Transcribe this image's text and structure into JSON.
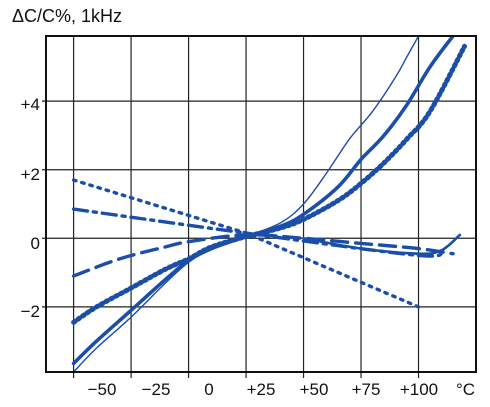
{
  "chart_data": {
    "type": "line",
    "title": "",
    "ylabel": "ΔC/C%, 1kHz",
    "xlabel": "",
    "x_unit": "°C",
    "xlim": [
      -62,
      125
    ],
    "ylim": [
      -3.9,
      5.9
    ],
    "grid": true,
    "x_ticks": [
      -50,
      -25,
      0,
      25,
      50,
      75,
      100
    ],
    "x_tick_labels": [
      "−50",
      "−25",
      "0",
      "+25",
      "+50",
      "+75",
      "+100"
    ],
    "y_ticks": [
      -2,
      0,
      2,
      4
    ],
    "y_tick_labels": [
      "−2",
      "0",
      "+2",
      "+4"
    ],
    "line_color": "#1a4ea8",
    "series": [
      {
        "style": "solid-thick",
        "x": [
          -50,
          -40,
          -25,
          -10,
          0,
          10,
          25,
          40,
          50,
          65,
          75,
          85,
          95,
          105,
          115
        ],
        "y": [
          -3.65,
          -3.0,
          -2.1,
          -1.2,
          -0.65,
          -0.3,
          0.05,
          0.35,
          0.7,
          1.5,
          2.3,
          3.0,
          3.9,
          5.0,
          5.9
        ]
      },
      {
        "style": "solid-thin",
        "x": [
          -50,
          -40,
          -25,
          -10,
          0,
          10,
          25,
          40,
          50,
          60,
          70,
          80,
          90,
          95,
          100
        ],
        "y": [
          -3.9,
          -3.2,
          -2.3,
          -1.3,
          -0.7,
          -0.3,
          0.05,
          0.45,
          1.0,
          1.9,
          2.9,
          3.7,
          4.7,
          5.3,
          5.9
        ]
      },
      {
        "style": "dotted-thick",
        "x": [
          -50,
          -40,
          -25,
          -10,
          0,
          10,
          25,
          40,
          50,
          65,
          75,
          85,
          95,
          105,
          120
        ],
        "y": [
          -2.45,
          -2.0,
          -1.45,
          -0.9,
          -0.6,
          -0.25,
          0.05,
          0.3,
          0.55,
          1.1,
          1.6,
          2.2,
          2.9,
          3.7,
          5.6
        ]
      },
      {
        "style": "dotted",
        "x": [
          -50,
          25,
          100
        ],
        "y": [
          1.7,
          0.15,
          -2.0
        ]
      },
      {
        "style": "dash-dot",
        "x": [
          -50,
          25,
          100,
          110
        ],
        "y": [
          0.85,
          0.15,
          -0.5,
          -0.35
        ]
      },
      {
        "style": "dashed",
        "x": [
          -50,
          -30,
          -10,
          0,
          25,
          50,
          75,
          100,
          115
        ],
        "y": [
          -1.1,
          -0.6,
          -0.25,
          -0.1,
          0.1,
          0.0,
          -0.15,
          -0.3,
          -0.45
        ]
      },
      {
        "style": "solid-medium",
        "x": [
          50,
          75,
          100,
          110,
          118
        ],
        "y": [
          0.0,
          -0.3,
          -0.45,
          -0.35,
          0.1
        ]
      }
    ]
  }
}
